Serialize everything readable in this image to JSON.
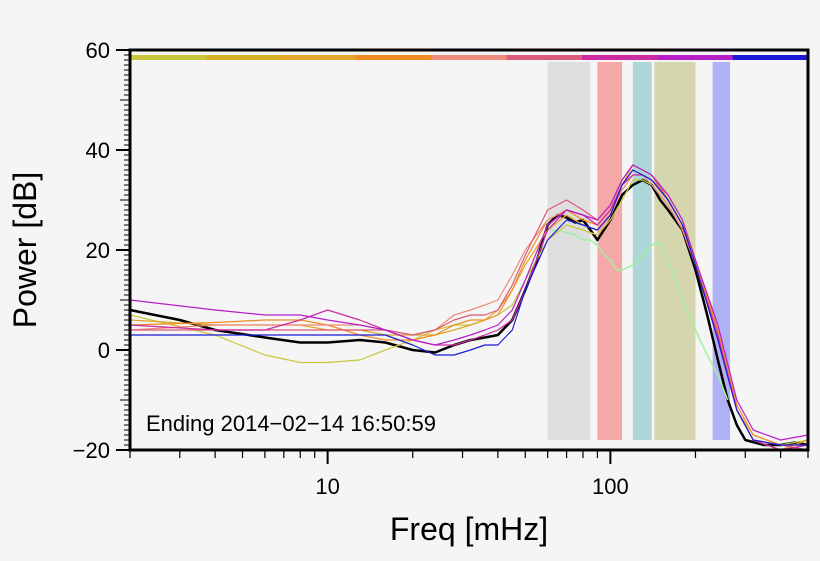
{
  "chart_data": {
    "type": "line",
    "title": "",
    "xlabel": "Freq [mHz]",
    "ylabel": "Power [dB]",
    "xscale": "log",
    "xlim": [
      2,
      500
    ],
    "ylim": [
      -20,
      60
    ],
    "grid": false,
    "annotation": "Ending 2014−02−14 16:50:59",
    "x_tick_labels": [
      {
        "value": 10,
        "label": "10"
      },
      {
        "value": 100,
        "label": "100"
      }
    ],
    "y_tick_labels": [
      {
        "value": 60,
        "label": "60"
      },
      {
        "value": 40,
        "label": "40"
      },
      {
        "value": 20,
        "label": "20"
      },
      {
        "value": 0,
        "label": "0"
      },
      {
        "value": -20,
        "label": "−20"
      }
    ],
    "color_bar": [
      "#c8c83a",
      "#d6b22a",
      "#e3a62a",
      "#ef8c22",
      "#f08a78",
      "#dc5a7a",
      "#cc2aa0",
      "#b81ec8",
      "#1b1bd8"
    ],
    "bands": [
      {
        "x0": 60,
        "x1": 85,
        "color": "#dedede"
      },
      {
        "x0": 90,
        "x1": 110,
        "color": "#f4a8a8"
      },
      {
        "x0": 120,
        "x1": 140,
        "color": "#acd6d8"
      },
      {
        "x0": 143,
        "x1": 200,
        "color": "#d6d6ae"
      },
      {
        "x0": 230,
        "x1": 265,
        "color": "#b0b0f4"
      }
    ],
    "series": [
      {
        "color": "#000000",
        "width": 2.5,
        "x": [
          2,
          3,
          4,
          6,
          8,
          10,
          13,
          16,
          20,
          24,
          28,
          32,
          36,
          40,
          45,
          50,
          55,
          60,
          65,
          70,
          75,
          80,
          85,
          90,
          100,
          110,
          120,
          130,
          140,
          150,
          160,
          180,
          200,
          220,
          240,
          260,
          280,
          300,
          350,
          400,
          450,
          500
        ],
        "y": [
          8,
          6,
          4,
          2.5,
          1.5,
          1.5,
          2,
          1.5,
          0,
          -0.5,
          1,
          2,
          2.5,
          3,
          6,
          12,
          18,
          25,
          27,
          26.5,
          25.5,
          26,
          24,
          22,
          26,
          31,
          33,
          34,
          33,
          30,
          28,
          24,
          16,
          7,
          -2,
          -10,
          -15,
          -18,
          -19,
          -19,
          -18.5,
          -19
        ]
      },
      {
        "color": "#a0f0a0",
        "width": 1.5,
        "x": [
          60,
          65,
          70,
          75,
          80,
          85,
          90,
          95,
          100,
          105,
          110,
          120,
          130,
          140,
          150,
          160,
          180,
          200,
          220,
          240,
          260
        ],
        "y": [
          24,
          24,
          23.5,
          23,
          22,
          22,
          21,
          19,
          18,
          16,
          16,
          17,
          19,
          21,
          21.5,
          18,
          10,
          4,
          -1,
          -5,
          -10
        ]
      },
      {
        "color": "#c8c83a",
        "width": 1.2,
        "x": [
          2,
          4,
          6,
          8,
          10,
          13,
          16,
          20,
          24,
          28,
          32,
          36,
          40,
          45,
          50,
          60,
          70,
          80,
          90,
          100,
          110,
          120,
          130,
          140,
          160,
          180,
          200,
          240,
          280,
          320,
          400,
          500
        ],
        "y": [
          7,
          3,
          -1,
          -2.5,
          -2.5,
          -2,
          0,
          2,
          4,
          5,
          5,
          6,
          7,
          9,
          14,
          22,
          25,
          24,
          23,
          26,
          30,
          34,
          34,
          33,
          29,
          24,
          17,
          2,
          -12,
          -17,
          -19,
          -18
        ]
      },
      {
        "color": "#e3a62a",
        "width": 1.2,
        "x": [
          2,
          4,
          6,
          8,
          10,
          13,
          16,
          20,
          24,
          28,
          32,
          36,
          40,
          45,
          50,
          60,
          70,
          80,
          90,
          100,
          110,
          120,
          130,
          140,
          160,
          180,
          200,
          240,
          280,
          320,
          400,
          500
        ],
        "y": [
          6,
          5,
          5,
          5,
          4,
          4,
          3,
          3,
          3,
          4,
          5,
          6,
          8,
          12,
          17,
          24,
          27,
          25,
          24,
          27,
          33,
          37,
          36,
          35,
          30,
          25,
          18,
          3,
          -12,
          -18,
          -20,
          -18
        ]
      },
      {
        "color": "#ef8c22",
        "width": 1.2,
        "x": [
          2,
          4,
          6,
          8,
          10,
          13,
          16,
          20,
          24,
          28,
          32,
          36,
          40,
          45,
          50,
          60,
          70,
          80,
          90,
          100,
          110,
          120,
          130,
          140,
          160,
          180,
          200,
          240,
          280,
          320,
          400,
          500
        ],
        "y": [
          5,
          5.5,
          6,
          6,
          5,
          3,
          2,
          2,
          3,
          5,
          6,
          6,
          7,
          12,
          18,
          26,
          28,
          26,
          25,
          28,
          33,
          36,
          35,
          34,
          31,
          26,
          18,
          4,
          -11,
          -17,
          -19,
          -19
        ]
      },
      {
        "color": "#f08a78",
        "width": 1.2,
        "x": [
          2,
          4,
          6,
          8,
          10,
          13,
          16,
          20,
          24,
          28,
          32,
          36,
          40,
          45,
          50,
          60,
          70,
          80,
          90,
          100,
          110,
          120,
          130,
          140,
          160,
          180,
          200,
          240,
          280,
          320,
          400,
          500
        ],
        "y": [
          4,
          5,
          5,
          5,
          5,
          5,
          4,
          3,
          4,
          7,
          8,
          9,
          10,
          15,
          20,
          26,
          28,
          27,
          25,
          28,
          32,
          35,
          35,
          33,
          29,
          24,
          17,
          3,
          -12,
          -18,
          -20,
          -19
        ]
      },
      {
        "color": "#dc5a7a",
        "width": 1.2,
        "x": [
          2,
          4,
          6,
          8,
          10,
          13,
          16,
          20,
          24,
          28,
          32,
          36,
          40,
          45,
          50,
          60,
          70,
          80,
          90,
          100,
          110,
          120,
          130,
          140,
          160,
          180,
          200,
          240,
          280,
          320,
          400,
          500
        ],
        "y": [
          4,
          4,
          4,
          4,
          4,
          4,
          4,
          3,
          4,
          6,
          7,
          7,
          8,
          13,
          19,
          28,
          30,
          28,
          26,
          29,
          34,
          37,
          36,
          35,
          30,
          25,
          17,
          2,
          -12,
          -18,
          -19,
          -20
        ]
      },
      {
        "color": "#cc2aa0",
        "width": 1.2,
        "x": [
          2,
          4,
          6,
          8,
          10,
          13,
          16,
          20,
          24,
          28,
          32,
          36,
          40,
          45,
          50,
          60,
          70,
          80,
          90,
          100,
          110,
          120,
          130,
          140,
          160,
          180,
          200,
          240,
          280,
          320,
          400,
          500
        ],
        "y": [
          5,
          4,
          4,
          6,
          8,
          6,
          4,
          2,
          1,
          1,
          2,
          3,
          4,
          6,
          12,
          24,
          28,
          27,
          25,
          28,
          33,
          35,
          35,
          34,
          30,
          25,
          17,
          3,
          -12,
          -18,
          -20,
          -19
        ]
      },
      {
        "color": "#b81ec8",
        "width": 1.2,
        "x": [
          2,
          4,
          6,
          8,
          10,
          13,
          16,
          20,
          24,
          28,
          32,
          36,
          40,
          45,
          50,
          60,
          70,
          80,
          90,
          100,
          110,
          120,
          130,
          140,
          160,
          180,
          200,
          240,
          280,
          320,
          400,
          500
        ],
        "y": [
          10,
          8,
          7,
          7,
          6,
          5,
          4,
          2,
          1,
          2,
          3,
          4,
          5,
          8,
          14,
          25,
          28,
          27,
          26,
          29,
          34,
          37,
          36,
          35,
          31,
          26,
          18,
          5,
          -10,
          -16,
          -18,
          -17
        ]
      },
      {
        "color": "#1b1bd8",
        "width": 1.2,
        "x": [
          2,
          4,
          6,
          8,
          10,
          13,
          16,
          20,
          24,
          28,
          32,
          36,
          40,
          45,
          50,
          60,
          70,
          80,
          90,
          100,
          110,
          120,
          130,
          140,
          160,
          180,
          200,
          240,
          280,
          320,
          400,
          500
        ],
        "y": [
          3,
          3,
          3,
          3,
          3,
          3,
          3,
          1,
          -1,
          -1,
          0,
          1,
          1,
          4,
          12,
          22,
          26,
          25,
          24,
          27,
          33,
          36,
          35,
          34,
          30,
          25,
          17,
          2,
          -12,
          -18,
          -19,
          -19
        ]
      }
    ]
  }
}
